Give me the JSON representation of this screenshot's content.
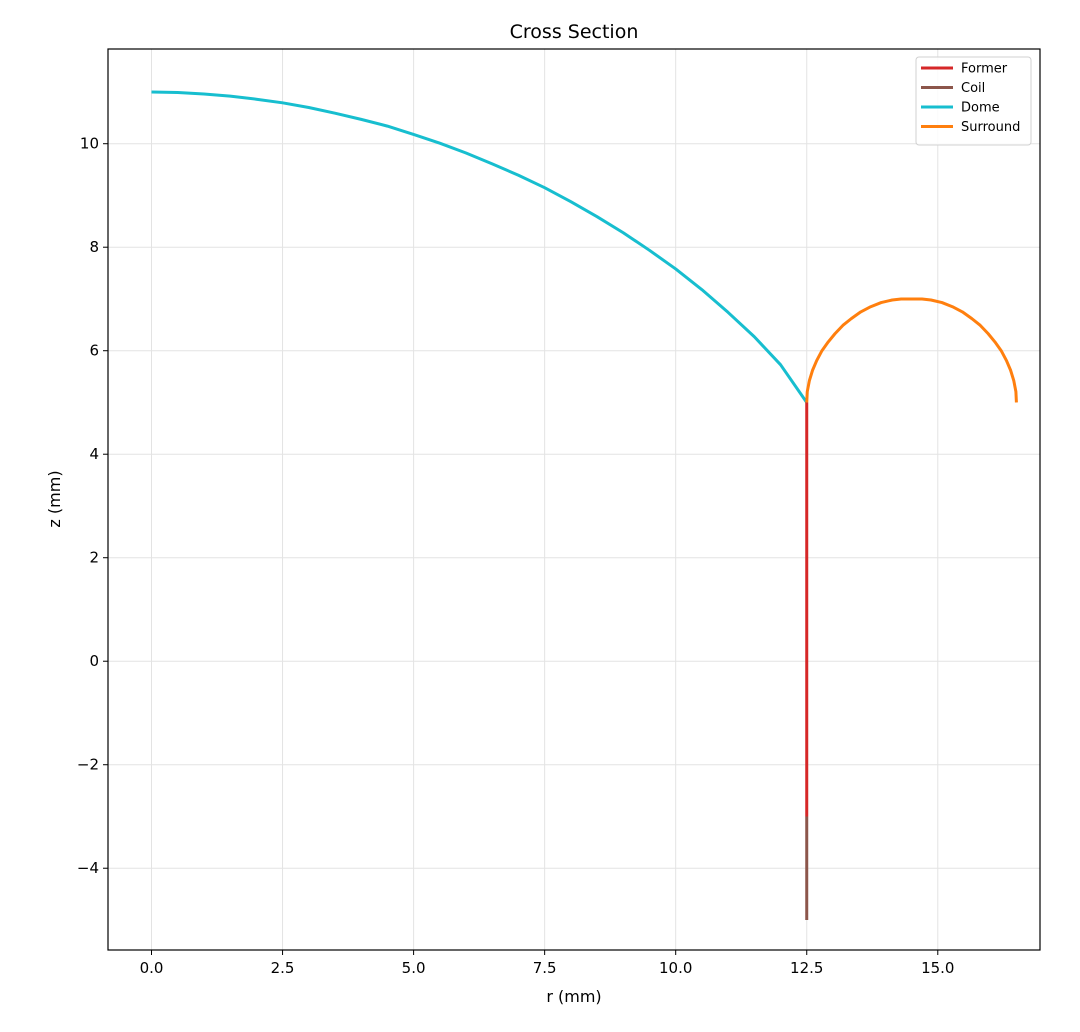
{
  "chart_data": {
    "type": "line",
    "title": "Cross Section",
    "xlabel": "r (mm)",
    "ylabel": "z (mm)",
    "xlim": [
      -0.83,
      16.95
    ],
    "ylim": [
      -5.58,
      11.83
    ],
    "xticks": [
      0.0,
      2.5,
      5.0,
      7.5,
      10.0,
      12.5,
      15.0
    ],
    "xtick_labels": [
      "0.0",
      "2.5",
      "5.0",
      "7.5",
      "10.0",
      "12.5",
      "15.0"
    ],
    "yticks": [
      -4,
      -2,
      0,
      2,
      4,
      6,
      8,
      10
    ],
    "ytick_labels": [
      "−4",
      "−2",
      "0",
      "2",
      "4",
      "6",
      "8",
      "10"
    ],
    "grid": true,
    "legend_position": "top-right",
    "series": [
      {
        "name": "Former",
        "color": "#d62728",
        "points": [
          [
            12.5,
            5.0
          ],
          [
            12.5,
            -3.0
          ]
        ]
      },
      {
        "name": "Coil",
        "color": "#8c564b",
        "points": [
          [
            12.5,
            -3.0
          ],
          [
            12.5,
            -5.0
          ]
        ]
      },
      {
        "name": "Dome",
        "color": "#17becf",
        "points": [
          [
            0.0,
            11.0
          ],
          [
            0.5,
            10.99
          ],
          [
            1.0,
            10.96
          ],
          [
            1.5,
            10.92
          ],
          [
            2.0,
            10.86
          ],
          [
            2.5,
            10.79
          ],
          [
            3.0,
            10.7
          ],
          [
            3.5,
            10.59
          ],
          [
            4.0,
            10.47
          ],
          [
            4.5,
            10.34
          ],
          [
            5.0,
            10.18
          ],
          [
            5.5,
            10.01
          ],
          [
            6.0,
            9.82
          ],
          [
            6.5,
            9.61
          ],
          [
            7.0,
            9.39
          ],
          [
            7.5,
            9.15
          ],
          [
            8.0,
            8.88
          ],
          [
            8.5,
            8.59
          ],
          [
            9.0,
            8.28
          ],
          [
            9.5,
            7.94
          ],
          [
            10.0,
            7.58
          ],
          [
            10.5,
            7.18
          ],
          [
            11.0,
            6.74
          ],
          [
            11.5,
            6.27
          ],
          [
            12.0,
            5.73
          ],
          [
            12.5,
            5.0
          ]
        ]
      },
      {
        "name": "Surround",
        "color": "#ff7f0e",
        "points": [
          [
            12.5,
            5.0
          ],
          [
            12.51,
            5.21
          ],
          [
            12.55,
            5.42
          ],
          [
            12.61,
            5.62
          ],
          [
            12.69,
            5.81
          ],
          [
            12.79,
            6.0
          ],
          [
            12.91,
            6.17
          ],
          [
            13.04,
            6.33
          ],
          [
            13.19,
            6.49
          ],
          [
            13.35,
            6.62
          ],
          [
            13.53,
            6.75
          ],
          [
            13.72,
            6.85
          ],
          [
            13.92,
            6.93
          ],
          [
            14.13,
            6.98
          ],
          [
            14.3,
            7.0
          ],
          [
            14.5,
            7.0
          ],
          [
            14.7,
            7.0
          ],
          [
            14.87,
            6.98
          ],
          [
            15.08,
            6.93
          ],
          [
            15.28,
            6.85
          ],
          [
            15.47,
            6.75
          ],
          [
            15.65,
            6.62
          ],
          [
            15.81,
            6.49
          ],
          [
            15.96,
            6.33
          ],
          [
            16.09,
            6.17
          ],
          [
            16.21,
            6.0
          ],
          [
            16.31,
            5.81
          ],
          [
            16.39,
            5.62
          ],
          [
            16.45,
            5.42
          ],
          [
            16.49,
            5.21
          ],
          [
            16.5,
            5.0
          ]
        ]
      }
    ]
  }
}
